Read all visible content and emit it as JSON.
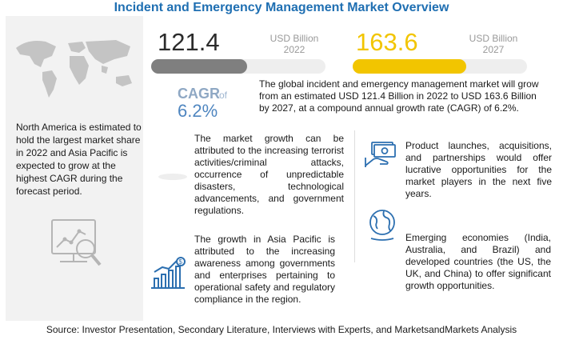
{
  "title": "Incident and Emergency Management Market Overview",
  "market_2022": {
    "value": "121.4",
    "unit": "USD Billion",
    "year": "2022",
    "bar_fraction": 0.55
  },
  "market_2027": {
    "value": "163.6",
    "unit": "USD Billion",
    "year": "2027",
    "bar_fraction": 0.65
  },
  "cagr": {
    "label": "CAGR",
    "of": "of",
    "value": "6.2%"
  },
  "summary": "The global incident and emergency management market will grow from an estimated USD 121.4 Billion in 2022 to USD 163.6 Billion by 2027, at a compound annual growth rate (CAGR) of 6.2%.",
  "regional": "North America is estimated to hold the largest market share in 2022 and Asia Pacific is expected to grow at the highest CAGR during the forecast period.",
  "drivers": [
    "The market growth can be attributed to the increasing terrorist activities/criminal attacks, occurrence of unpredictable disasters, technological advancements, and government regulations.",
    "The growth in Asia Pacific is attributed to the increasing awareness among governments and enterprises pertaining to operational safety and regulatory compliance in the region.",
    "Product launches, acquisitions, and partnerships would offer lucrative opportunities for the market players in the next five years.",
    "Emerging economies (India, Australia, and Brazil) and developed countries (the US, the UK, and China) to offer significant growth opportunities."
  ],
  "source": "Source: Investor Presentation, Secondary Literature, Interviews with Experts, and MarketsandMarkets Analysis",
  "colors": {
    "title": "#1f6fb2",
    "accent": "#f2c500",
    "dark_bar": "#7f7f7f",
    "cagr": "#4f86c0"
  },
  "icons": [
    "world-map-icon",
    "chart-magnifier-icon",
    "blank-badge-icon",
    "growth-chart-icon",
    "money-hand-icon",
    "globe-icon"
  ]
}
